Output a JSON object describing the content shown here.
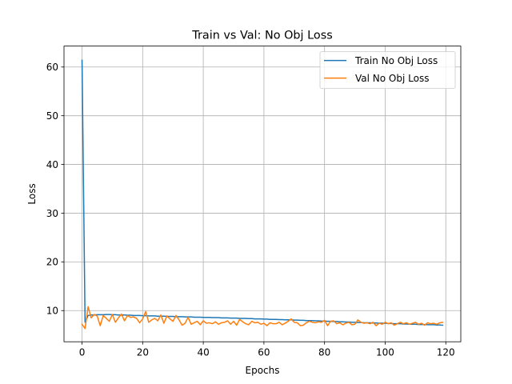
{
  "chart_data": {
    "type": "line",
    "title": "Train vs Val: No Obj Loss",
    "xlabel": "Epochs",
    "ylabel": "Loss",
    "xlim": [
      -5.95,
      124.95
    ],
    "ylim": [
      3.6,
      64.3
    ],
    "x_ticks": [
      0,
      20,
      40,
      60,
      80,
      100,
      120
    ],
    "y_ticks": [
      10,
      20,
      30,
      40,
      50,
      60
    ],
    "grid": true,
    "legend": "top-right",
    "x": [
      0,
      1,
      2,
      3,
      4,
      5,
      6,
      7,
      8,
      9,
      10,
      11,
      12,
      13,
      14,
      15,
      16,
      17,
      18,
      19,
      20,
      21,
      22,
      23,
      24,
      25,
      26,
      27,
      28,
      29,
      30,
      31,
      32,
      33,
      34,
      35,
      36,
      37,
      38,
      39,
      40,
      41,
      42,
      43,
      44,
      45,
      46,
      47,
      48,
      49,
      50,
      51,
      52,
      53,
      54,
      55,
      56,
      57,
      58,
      59,
      60,
      61,
      62,
      63,
      64,
      65,
      66,
      67,
      68,
      69,
      70,
      71,
      72,
      73,
      74,
      75,
      76,
      77,
      78,
      79,
      80,
      81,
      82,
      83,
      84,
      85,
      86,
      87,
      88,
      89,
      90,
      91,
      92,
      93,
      94,
      95,
      96,
      97,
      98,
      99,
      100,
      101,
      102,
      103,
      104,
      105,
      106,
      107,
      108,
      109,
      110,
      111,
      112,
      113,
      114,
      115,
      116,
      117,
      118,
      119
    ],
    "series": [
      {
        "name": "Train No Obj Loss",
        "color": "#1f77b4",
        "values": [
          61.4,
          7.6,
          9.0,
          9.1,
          9.1,
          9.15,
          9.15,
          9.15,
          9.2,
          9.2,
          9.15,
          9.15,
          9.1,
          9.1,
          9.1,
          9.05,
          9.05,
          9.0,
          9.0,
          9.0,
          8.95,
          8.95,
          8.9,
          8.9,
          8.9,
          8.85,
          8.85,
          8.85,
          8.8,
          8.8,
          8.8,
          8.75,
          8.75,
          8.75,
          8.7,
          8.7,
          8.7,
          8.65,
          8.65,
          8.65,
          8.6,
          8.6,
          8.6,
          8.55,
          8.55,
          8.55,
          8.5,
          8.5,
          8.5,
          8.45,
          8.45,
          8.45,
          8.4,
          8.4,
          8.4,
          8.35,
          8.35,
          8.3,
          8.3,
          8.3,
          8.25,
          8.25,
          8.2,
          8.2,
          8.2,
          8.15,
          8.15,
          8.1,
          8.1,
          8.1,
          8.05,
          8.05,
          8.0,
          8.0,
          7.95,
          7.95,
          7.95,
          7.9,
          7.9,
          7.85,
          7.85,
          7.8,
          7.8,
          7.75,
          7.75,
          7.7,
          7.7,
          7.65,
          7.65,
          7.6,
          7.6,
          7.55,
          7.55,
          7.5,
          7.5,
          7.5,
          7.45,
          7.45,
          7.4,
          7.4,
          7.4,
          7.35,
          7.35,
          7.3,
          7.3,
          7.3,
          7.25,
          7.25,
          7.2,
          7.2,
          7.2,
          7.15,
          7.15,
          7.15,
          7.1,
          7.1,
          7.1,
          7.05,
          7.05,
          7.0
        ]
      },
      {
        "name": "Val No Obj Loss",
        "color": "#ff7f0e",
        "values": [
          7.2,
          6.3,
          10.8,
          8.5,
          9.2,
          8.9,
          6.9,
          9.0,
          8.4,
          7.8,
          9.2,
          7.6,
          8.5,
          9.3,
          7.9,
          9.0,
          8.6,
          8.7,
          8.4,
          7.5,
          8.3,
          9.8,
          7.6,
          8.1,
          8.4,
          7.9,
          9.1,
          7.4,
          8.9,
          8.3,
          7.8,
          9.0,
          8.1,
          7.0,
          7.4,
          8.6,
          7.2,
          7.5,
          7.8,
          7.1,
          7.9,
          7.4,
          7.5,
          7.3,
          7.7,
          7.2,
          7.5,
          7.6,
          7.9,
          7.2,
          7.8,
          7.0,
          8.2,
          7.7,
          7.3,
          7.1,
          7.8,
          7.5,
          7.6,
          7.2,
          7.4,
          6.9,
          7.5,
          7.3,
          7.3,
          7.6,
          7.1,
          7.4,
          7.8,
          8.3,
          7.6,
          7.5,
          6.9,
          7.0,
          7.5,
          7.8,
          7.6,
          7.5,
          7.7,
          7.6,
          8.0,
          6.9,
          7.8,
          7.9,
          7.3,
          7.5,
          7.1,
          7.4,
          7.6,
          7.1,
          7.2,
          8.1,
          7.6,
          7.4,
          7.5,
          7.3,
          7.6,
          6.9,
          7.4,
          7.2,
          7.6,
          7.3,
          7.5,
          7.0,
          7.3,
          7.6,
          7.3,
          7.5,
          7.2,
          7.4,
          7.6,
          7.2,
          7.4,
          7.0,
          7.5,
          7.3,
          7.4,
          7.2,
          7.5,
          7.6
        ]
      }
    ]
  }
}
